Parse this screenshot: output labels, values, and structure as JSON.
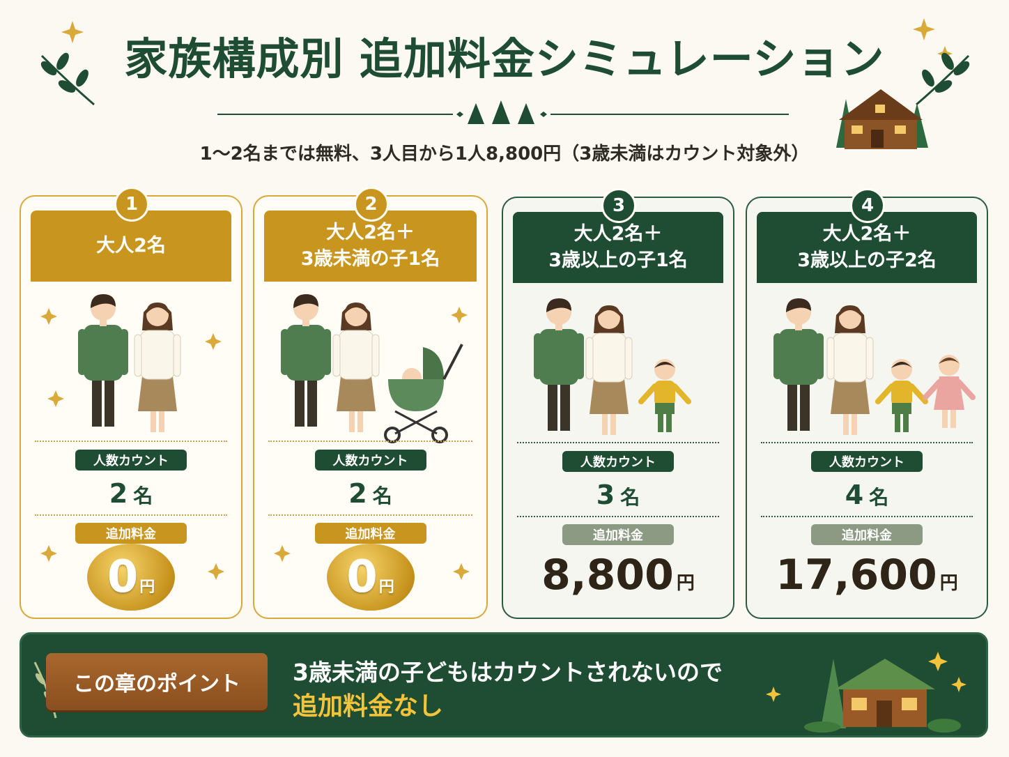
{
  "header": {
    "title": "家族構成別 追加料金シミュレーション",
    "subtitle": "1～2名までは無料、3人目から1人8,800円（3歳未満はカウント対象外）"
  },
  "cards": [
    {
      "number": "1",
      "title": [
        "大人2名"
      ],
      "count_label": "人数カウント",
      "count": "2",
      "count_unit": "名",
      "fee_label": "追加料金",
      "fee": "0",
      "fee_unit": "円"
    },
    {
      "number": "2",
      "title": [
        "大人2名＋",
        "3歳未満の子1名"
      ],
      "count_label": "人数カウント",
      "count": "2",
      "count_unit": "名",
      "fee_label": "追加料金",
      "fee": "0",
      "fee_unit": "円"
    },
    {
      "number": "3",
      "title": [
        "大人2名＋",
        "3歳以上の子1名"
      ],
      "count_label": "人数カウント",
      "count": "3",
      "count_unit": "名",
      "fee_label": "追加料金",
      "fee": "8,800",
      "fee_unit": "円"
    },
    {
      "number": "4",
      "title": [
        "大人2名＋",
        "3歳以上の子2名"
      ],
      "count_label": "人数カウント",
      "count": "4",
      "count_unit": "名",
      "fee_label": "追加料金",
      "fee": "17,600",
      "fee_unit": "円"
    }
  ],
  "point": {
    "label": "この章のポイント",
    "line1": "3歳未満の子どもはカウントされないので",
    "line2": "追加料金なし"
  }
}
